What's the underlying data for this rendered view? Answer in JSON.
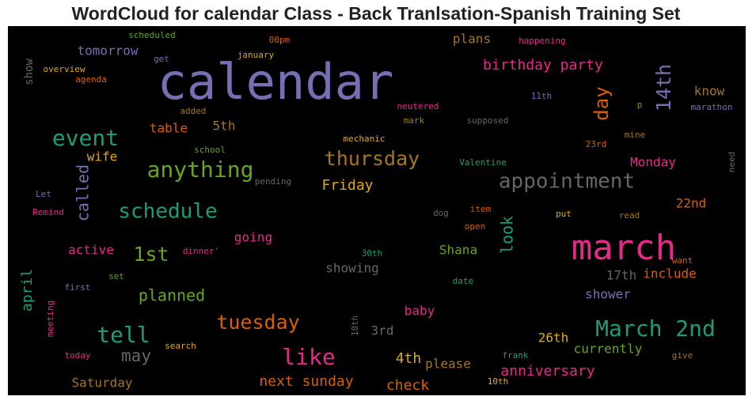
{
  "chart_data": {
    "type": "wordcloud",
    "title": "WordCloud for calendar Class - Back Tranlsation-Spanish Training Set",
    "background": "#000000",
    "words": [
      {
        "text": "calendar",
        "weight": 100,
        "color": "#7570b3",
        "rotated": false
      },
      {
        "text": "march",
        "weight": 70,
        "color": "#e7298a",
        "rotated": false
      },
      {
        "text": "March 2nd",
        "weight": 48,
        "color": "#1b9e77",
        "rotated": false
      },
      {
        "text": "appointment",
        "weight": 45,
        "color": "#666666",
        "rotated": false
      },
      {
        "text": "schedule",
        "weight": 45,
        "color": "#1b9e77",
        "rotated": false
      },
      {
        "text": "event",
        "weight": 45,
        "color": "#1b9e77",
        "rotated": false
      },
      {
        "text": "anything",
        "weight": 45,
        "color": "#66a61e",
        "rotated": false
      },
      {
        "text": "tell",
        "weight": 45,
        "color": "#1b9e77",
        "rotated": false
      },
      {
        "text": "like",
        "weight": 42,
        "color": "#e7298a",
        "rotated": false
      },
      {
        "text": "tuesday",
        "weight": 40,
        "color": "#d95f02",
        "rotated": false
      },
      {
        "text": "thursday",
        "weight": 38,
        "color": "#a6761d",
        "rotated": false
      },
      {
        "text": "14th",
        "weight": 38,
        "color": "#7570b3",
        "rotated": true
      },
      {
        "text": "1st",
        "weight": 38,
        "color": "#66a61e",
        "rotated": false
      },
      {
        "text": "day",
        "weight": 33,
        "color": "#d95f02",
        "rotated": true
      },
      {
        "text": "may",
        "weight": 33,
        "color": "#666666",
        "rotated": false
      },
      {
        "text": "birthday party",
        "weight": 30,
        "color": "#e7298a",
        "rotated": false
      },
      {
        "text": "planned",
        "weight": 30,
        "color": "#66a61e",
        "rotated": false
      },
      {
        "text": "look",
        "weight": 30,
        "color": "#1b9e77",
        "rotated": true
      },
      {
        "text": "called",
        "weight": 30,
        "color": "#7570b3",
        "rotated": true
      },
      {
        "text": "anniversary",
        "weight": 28,
        "color": "#e7298a",
        "rotated": false
      },
      {
        "text": "next sunday",
        "weight": 27,
        "color": "#d95f02",
        "rotated": false
      },
      {
        "text": "Friday",
        "weight": 27,
        "color": "#e6ab02",
        "rotated": false
      },
      {
        "text": "4th",
        "weight": 27,
        "color": "#e6ab02",
        "rotated": false
      },
      {
        "text": "check",
        "weight": 27,
        "color": "#d95f02",
        "rotated": false
      },
      {
        "text": "april",
        "weight": 25,
        "color": "#1b9e77",
        "rotated": true
      },
      {
        "text": "plans",
        "weight": 24,
        "color": "#a6761d",
        "rotated": false
      },
      {
        "text": "know",
        "weight": 24,
        "color": "#a6761d",
        "rotated": false
      },
      {
        "text": "showing",
        "weight": 24,
        "color": "#666666",
        "rotated": false
      },
      {
        "text": "26th",
        "weight": 24,
        "color": "#e6ab02",
        "rotated": false
      },
      {
        "text": "currently",
        "weight": 24,
        "color": "#66a61e",
        "rotated": false
      },
      {
        "text": "tomorrow",
        "weight": 23,
        "color": "#7570b3",
        "rotated": false
      },
      {
        "text": "going",
        "weight": 23,
        "color": "#e7298a",
        "rotated": false
      },
      {
        "text": "baby",
        "weight": 23,
        "color": "#e7298a",
        "rotated": false
      },
      {
        "text": "please",
        "weight": 23,
        "color": "#a6761d",
        "rotated": false
      },
      {
        "text": "Saturday",
        "weight": 22,
        "color": "#a6761d",
        "rotated": false
      },
      {
        "text": "include",
        "weight": 22,
        "color": "#d95f02",
        "rotated": false
      },
      {
        "text": "17th",
        "weight": 22,
        "color": "#666666",
        "rotated": false
      },
      {
        "text": "shower",
        "weight": 22,
        "color": "#7570b3",
        "rotated": false
      },
      {
        "text": "3rd",
        "weight": 22,
        "color": "#666666",
        "rotated": false
      },
      {
        "text": "active",
        "weight": 22,
        "color": "#e7298a",
        "rotated": false
      },
      {
        "text": "Monday",
        "weight": 22,
        "color": "#e7298a",
        "rotated": false
      },
      {
        "text": "22nd",
        "weight": 22,
        "color": "#d95f02",
        "rotated": false
      },
      {
        "text": "Shana",
        "weight": 22,
        "color": "#66a61e",
        "rotated": false
      },
      {
        "text": "table",
        "weight": 21,
        "color": "#d95f02",
        "rotated": false
      },
      {
        "text": "5th",
        "weight": 21,
        "color": "#a6761d",
        "rotated": false
      },
      {
        "text": "wife",
        "weight": 21,
        "color": "#e6ab02",
        "rotated": false
      },
      {
        "text": "show",
        "weight": 20,
        "color": "#666666",
        "rotated": true
      },
      {
        "text": "scheduled",
        "weight": 16,
        "color": "#66a61e",
        "rotated": false
      },
      {
        "text": "00pm",
        "weight": 16,
        "color": "#d95f02",
        "rotated": false
      },
      {
        "text": "happening",
        "weight": 16,
        "color": "#e7298a",
        "rotated": false
      },
      {
        "text": "get",
        "weight": 16,
        "color": "#7570b3",
        "rotated": false
      },
      {
        "text": "january",
        "weight": 16,
        "color": "#e6ab02",
        "rotated": false
      },
      {
        "text": "overview",
        "weight": 16,
        "color": "#e6ab02",
        "rotated": false
      },
      {
        "text": "agenda",
        "weight": 16,
        "color": "#d95f02",
        "rotated": false
      },
      {
        "text": "added",
        "weight": 16,
        "color": "#a6761d",
        "rotated": false
      },
      {
        "text": "11th",
        "weight": 16,
        "color": "#7570b3",
        "rotated": false
      },
      {
        "text": "neutered",
        "weight": 16,
        "color": "#e7298a",
        "rotated": false
      },
      {
        "text": "mark",
        "weight": 16,
        "color": "#a6761d",
        "rotated": false
      },
      {
        "text": "supposed",
        "weight": 16,
        "color": "#666666",
        "rotated": false
      },
      {
        "text": "p",
        "weight": 16,
        "color": "#66a61e",
        "rotated": false
      },
      {
        "text": "marathon",
        "weight": 16,
        "color": "#7570b3",
        "rotated": false
      },
      {
        "text": "mechanic",
        "weight": 16,
        "color": "#e6ab02",
        "rotated": false
      },
      {
        "text": "mine",
        "weight": 16,
        "color": "#a6761d",
        "rotated": false
      },
      {
        "text": "23rd",
        "weight": 16,
        "color": "#d95f02",
        "rotated": false
      },
      {
        "text": "school",
        "weight": 16,
        "color": "#66a61e",
        "rotated": false
      },
      {
        "text": "Valentine",
        "weight": 16,
        "color": "#1b9e77",
        "rotated": false
      },
      {
        "text": "need",
        "weight": 16,
        "color": "#666666",
        "rotated": true
      },
      {
        "text": "pending",
        "weight": 16,
        "color": "#666666",
        "rotated": false
      },
      {
        "text": "Let",
        "weight": 16,
        "color": "#7570b3",
        "rotated": false
      },
      {
        "text": "Remind",
        "weight": 16,
        "color": "#e7298a",
        "rotated": false
      },
      {
        "text": "dog",
        "weight": 16,
        "color": "#666666",
        "rotated": false
      },
      {
        "text": "item",
        "weight": 16,
        "color": "#d95f02",
        "rotated": false
      },
      {
        "text": "put",
        "weight": 16,
        "color": "#e6ab02",
        "rotated": false
      },
      {
        "text": "read",
        "weight": 16,
        "color": "#a6761d",
        "rotated": false
      },
      {
        "text": "open",
        "weight": 16,
        "color": "#d95f02",
        "rotated": false
      },
      {
        "text": "dinner'",
        "weight": 16,
        "color": "#e7298a",
        "rotated": false
      },
      {
        "text": "30th",
        "weight": 16,
        "color": "#1b9e77",
        "rotated": false
      },
      {
        "text": "want",
        "weight": 16,
        "color": "#d95f02",
        "rotated": false
      },
      {
        "text": "first",
        "weight": 16,
        "color": "#7570b3",
        "rotated": false
      },
      {
        "text": "set",
        "weight": 16,
        "color": "#66a61e",
        "rotated": false
      },
      {
        "text": "date",
        "weight": 16,
        "color": "#1b9e77",
        "rotated": false
      },
      {
        "text": "meeting",
        "weight": 16,
        "color": "#e7298a",
        "rotated": true
      },
      {
        "text": "18th",
        "weight": 16,
        "color": "#666666",
        "rotated": true
      },
      {
        "text": "today",
        "weight": 16,
        "color": "#e7298a",
        "rotated": false
      },
      {
        "text": "search",
        "weight": 16,
        "color": "#e6ab02",
        "rotated": false
      },
      {
        "text": "frank",
        "weight": 16,
        "color": "#1b9e77",
        "rotated": false
      },
      {
        "text": "give",
        "weight": 16,
        "color": "#a6761d",
        "rotated": false
      },
      {
        "text": "10th",
        "weight": 16,
        "color": "#e6ab02",
        "rotated": false
      }
    ]
  }
}
